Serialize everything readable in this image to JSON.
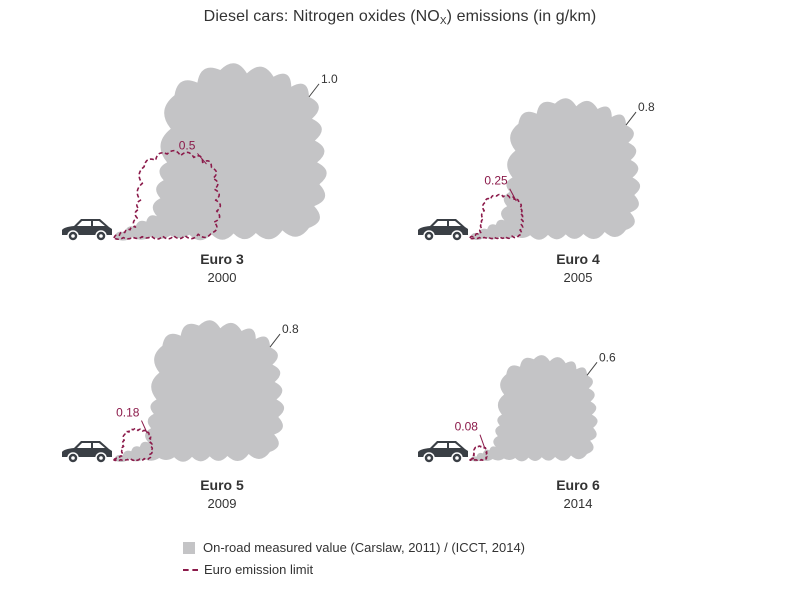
{
  "title_parts": {
    "before": "Diesel cars: Nitrogen oxides (NO",
    "sub": "X",
    "after": ") emissions (in g/km)"
  },
  "chart_data": {
    "type": "area",
    "title": "Diesel cars: Nitrogen oxides (NOx) emissions (in g/km)",
    "unit": "g/km",
    "panels": [
      {
        "standard": "Euro 3",
        "year": "2000",
        "on_road": 1.0,
        "on_road_label": "1.0",
        "limit": 0.5,
        "limit_label": "0.5"
      },
      {
        "standard": "Euro 4",
        "year": "2005",
        "on_road": 0.8,
        "on_road_label": "0.8",
        "limit": 0.25,
        "limit_label": "0.25"
      },
      {
        "standard": "Euro 5",
        "year": "2009",
        "on_road": 0.8,
        "on_road_label": "0.8",
        "limit": 0.18,
        "limit_label": "0.18"
      },
      {
        "standard": "Euro 6",
        "year": "2014",
        "on_road": 0.6,
        "on_road_label": "0.6",
        "limit": 0.08,
        "limit_label": "0.08"
      }
    ],
    "legend": [
      {
        "label": "On-road measured value (Carslaw, 2011) / (ICCT, 2014)",
        "color": "#c4c4c6"
      },
      {
        "label": "Euro emission limit",
        "color": "#8b1a4a"
      }
    ]
  },
  "colors": {
    "smoke": "#c4c4c6",
    "limit": "#8b1a4a",
    "car": "#3a3f45",
    "text": "#333333"
  }
}
